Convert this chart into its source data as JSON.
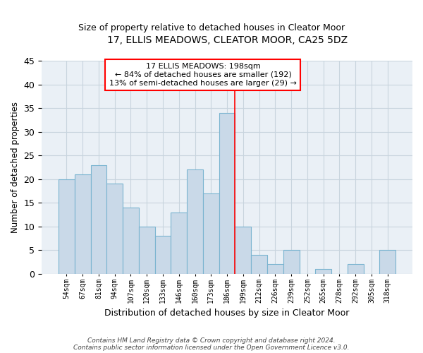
{
  "title": "17, ELLIS MEADOWS, CLEATOR MOOR, CA25 5DZ",
  "subtitle": "Size of property relative to detached houses in Cleator Moor",
  "xlabel": "Distribution of detached houses by size in Cleator Moor",
  "ylabel": "Number of detached properties",
  "categories": [
    "54sqm",
    "67sqm",
    "81sqm",
    "94sqm",
    "107sqm",
    "120sqm",
    "133sqm",
    "146sqm",
    "160sqm",
    "173sqm",
    "186sqm",
    "199sqm",
    "212sqm",
    "226sqm",
    "239sqm",
    "252sqm",
    "265sqm",
    "278sqm",
    "292sqm",
    "305sqm",
    "318sqm"
  ],
  "values": [
    20,
    21,
    23,
    19,
    14,
    10,
    8,
    13,
    22,
    17,
    34,
    10,
    4,
    2,
    5,
    0,
    1,
    0,
    2,
    0,
    5
  ],
  "bar_color": "#c9d9e8",
  "bar_edge_color": "#7ab4d0",
  "vline_color": "red",
  "annotation_text": "17 ELLIS MEADOWS: 198sqm\n← 84% of detached houses are smaller (192)\n13% of semi-detached houses are larger (29) →",
  "annotation_box_color": "white",
  "annotation_box_edge_color": "red",
  "ylim": [
    0,
    45
  ],
  "yticks": [
    0,
    5,
    10,
    15,
    20,
    25,
    30,
    35,
    40,
    45
  ],
  "footer": "Contains HM Land Registry data © Crown copyright and database right 2024.\nContains public sector information licensed under the Open Government Licence v3.0.",
  "bg_color": "#eaf0f6",
  "grid_color": "#c8d4de",
  "title_fontsize": 10,
  "subtitle_fontsize": 9
}
